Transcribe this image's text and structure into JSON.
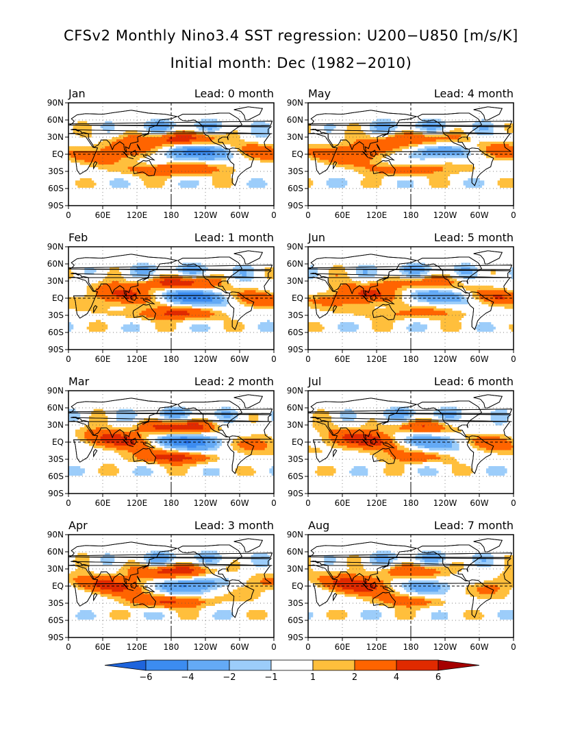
{
  "title_line1": "CFSv2 Monthly Nino3.4 SST regression: U200−U850 [m/s/K]",
  "title_line2": "Initial month: Dec (1982−2010)",
  "chart_data": {
    "type": "heatmap",
    "variable": "U200−U850",
    "units": "m/s/K",
    "x_tick_labels_left": [
      "0",
      "60E",
      "120E",
      "180",
      "120W",
      "60W",
      "0"
    ],
    "x_tick_labels_right": [
      "0",
      "60E",
      "120E",
      "180",
      "120W",
      "60W",
      "0"
    ],
    "y_tick_labels": [
      "90N",
      "60N",
      "30N",
      "EQ",
      "30S",
      "60S",
      "90S"
    ],
    "xlim": [
      0,
      360
    ],
    "ylim": [
      -90,
      90
    ],
    "panels": [
      {
        "month": "Jan",
        "lead": "Lead: 0 month",
        "lead_months": 0
      },
      {
        "month": "Feb",
        "lead": "Lead: 1 month",
        "lead_months": 1
      },
      {
        "month": "Mar",
        "lead": "Lead: 2 month",
        "lead_months": 2
      },
      {
        "month": "Apr",
        "lead": "Lead: 3 month",
        "lead_months": 3
      },
      {
        "month": "May",
        "lead": "Lead: 4 month",
        "lead_months": 4
      },
      {
        "month": "Jun",
        "lead": "Lead: 5 month",
        "lead_months": 5
      },
      {
        "month": "Jul",
        "lead": "Lead: 6 month",
        "lead_months": 6
      },
      {
        "month": "Aug",
        "lead": "Lead: 7 month",
        "lead_months": 7
      }
    ],
    "colorbar": {
      "labels": [
        "−6",
        "−4",
        "−2",
        "−1",
        "1",
        "2",
        "4",
        "6"
      ],
      "levels": [
        -6,
        -4,
        -2,
        -1,
        1,
        2,
        4,
        6
      ],
      "colors": [
        "#1e64dc",
        "#3c8cf0",
        "#64aaf5",
        "#9ccdfa",
        "#ffffff",
        "#ffbf3c",
        "#ff6400",
        "#e02a00",
        "#a50000"
      ]
    }
  }
}
